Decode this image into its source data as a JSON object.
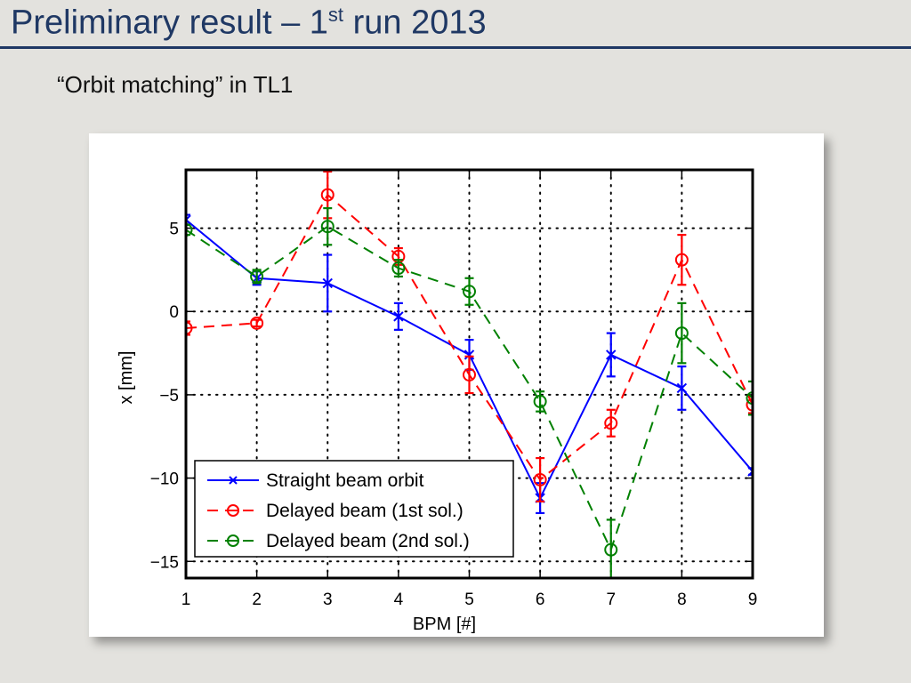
{
  "slide": {
    "title_main": "Preliminary result – 1",
    "title_sup": "st",
    "title_tail": " run 2013",
    "subtitle": "“Orbit matching” in TL1"
  },
  "chart_data": {
    "type": "line",
    "title": "",
    "xlabel": "BPM [#]",
    "ylabel": "x [mm]",
    "xlim": [
      1,
      9
    ],
    "ylim": [
      -16,
      8.5
    ],
    "xticks": [
      1,
      2,
      3,
      4,
      5,
      6,
      7,
      8,
      9
    ],
    "yticks": [
      5,
      0,
      -5,
      -10,
      -15
    ],
    "ytick_labels": [
      "5",
      "0",
      "−5",
      "−10",
      "−15"
    ],
    "grid": true,
    "legend_position": "bottom-left",
    "x": [
      1,
      2,
      3,
      4,
      5,
      6,
      7,
      8,
      9
    ],
    "series": [
      {
        "name": "Straight beam orbit",
        "color": "#0000ff",
        "line": "solid",
        "marker": "x",
        "values": [
          5.5,
          2.0,
          1.7,
          -0.3,
          -2.6,
          -11.2,
          -2.6,
          -4.6,
          -9.6
        ],
        "errors": [
          0.3,
          0.4,
          1.7,
          0.8,
          0.9,
          0.9,
          1.3,
          1.3,
          0.2
        ]
      },
      {
        "name": "Delayed beam (1st sol.)",
        "color": "#ff0000",
        "line": "dashed",
        "marker": "o",
        "values": [
          -1.0,
          -0.7,
          7.0,
          3.3,
          -3.8,
          -10.1,
          -6.7,
          3.1,
          -5.6
        ],
        "errors": [
          0.4,
          0.2,
          1.4,
          0.5,
          1.1,
          1.3,
          0.8,
          1.5,
          0.5
        ]
      },
      {
        "name": "Delayed beam (2nd sol.)",
        "color": "#008000",
        "line": "dashed",
        "marker": "o",
        "values": [
          4.9,
          2.1,
          5.1,
          2.6,
          1.2,
          -5.4,
          -14.3,
          -1.3,
          -5.2
        ],
        "errors": [
          0.3,
          0.4,
          1.1,
          0.5,
          0.8,
          0.6,
          1.8,
          1.8,
          1.0
        ]
      }
    ]
  }
}
